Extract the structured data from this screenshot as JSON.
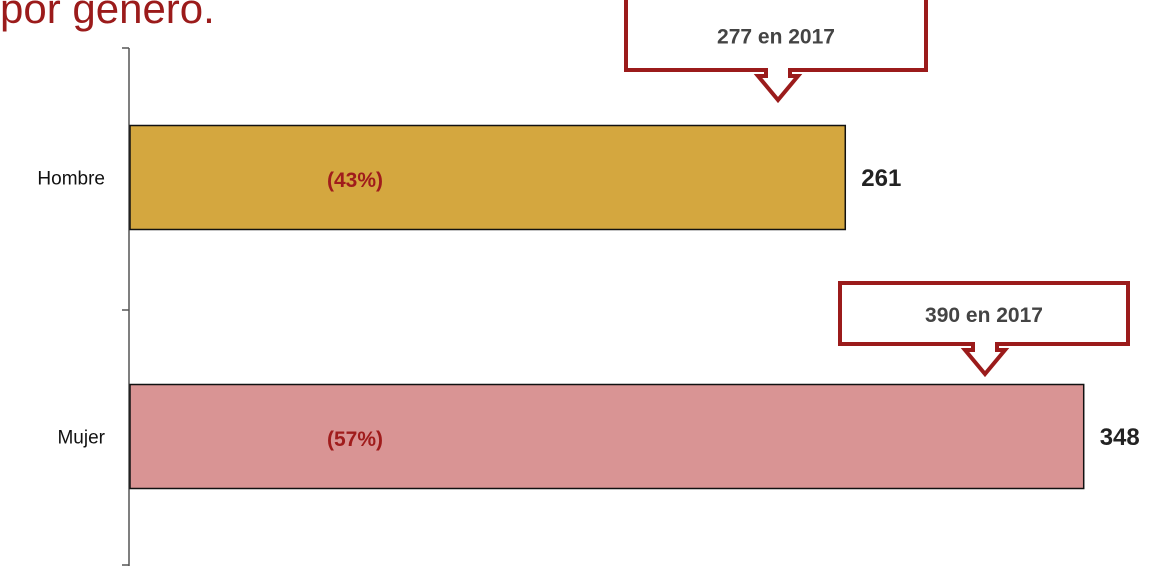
{
  "chart_data": {
    "type": "hbar",
    "title": "por género.",
    "categories": [
      "Hombre",
      "Mujer"
    ],
    "values": [
      261,
      348
    ],
    "colors": [
      "#d4a73f",
      "#d99494"
    ],
    "share_labels": [
      "(43%)",
      "(57%)"
    ],
    "annotations": [
      "277 en 2017",
      "390 en 2017"
    ],
    "xlim": [
      0,
      370
    ]
  }
}
